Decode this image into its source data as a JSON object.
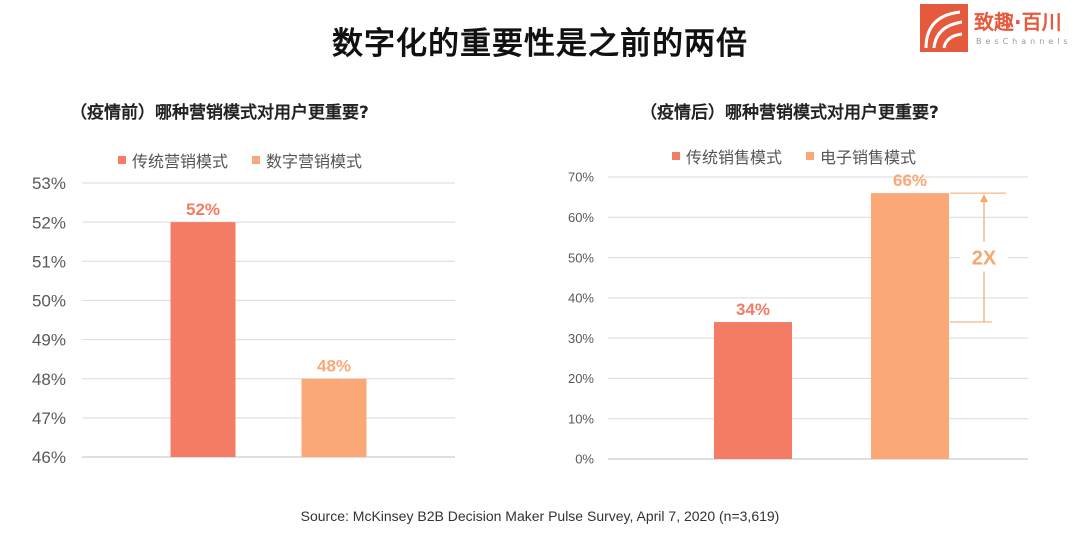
{
  "page": {
    "title": "数字化的重要性是之前的两倍",
    "source": "Source: McKinsey B2B Decision Maker Pulse Survey, April 7, 2020 (n=3,619)"
  },
  "logo": {
    "name": "致趣·百川",
    "subtext": "BesChannels",
    "color": "#e55a3c"
  },
  "colors": {
    "traditional": "#f47c64",
    "digital": "#fba876",
    "grid": "#d9d9d9",
    "axis_text": "#595959",
    "annotation": "#f5a76c"
  },
  "chart_data": [
    {
      "type": "bar",
      "title": "（疫情前）哪种营销模式对用户更重要?",
      "legend": [
        "传统营销模式",
        "数字营销模式"
      ],
      "legend_placement": "top",
      "categories": [
        "传统营销模式",
        "数字营销模式"
      ],
      "values": [
        52,
        48
      ],
      "data_labels": [
        "52%",
        "48%"
      ],
      "ylim": [
        46,
        53
      ],
      "yticks": [
        "46%",
        "47%",
        "48%",
        "49%",
        "50%",
        "51%",
        "52%",
        "53%"
      ],
      "grid": true
    },
    {
      "type": "bar",
      "title": "（疫情后）哪种营销模式对用户更重要?",
      "legend": [
        "传统销售模式",
        "电子销售模式"
      ],
      "legend_placement": "top",
      "categories": [
        "传统销售模式",
        "电子销售模式"
      ],
      "values": [
        34,
        66
      ],
      "data_labels": [
        "34%",
        "66%"
      ],
      "ylim": [
        0,
        70
      ],
      "yticks": [
        "0%",
        "10%",
        "20%",
        "30%",
        "40%",
        "50%",
        "60%",
        "70%"
      ],
      "grid": true,
      "annotation": "2X"
    }
  ]
}
